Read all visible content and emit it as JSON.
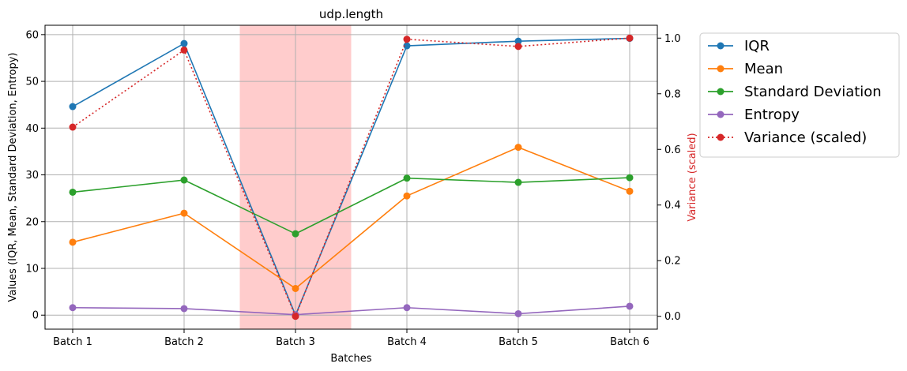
{
  "chart_data": {
    "type": "line",
    "title": "udp.length",
    "xlabel": "Batches",
    "ylabel": "Values (IQR, Mean, Standard Deviation, Entropy)",
    "y2label": "Variance (scaled)",
    "categories": [
      "Batch 1",
      "Batch 2",
      "Batch 3",
      "Batch 4",
      "Batch 5",
      "Batch 6"
    ],
    "ylim": [
      -3,
      62
    ],
    "y_ticks": [
      0,
      10,
      20,
      30,
      40,
      50,
      60
    ],
    "y2lim": [
      -0.0462,
      1.0462
    ],
    "y2_ticks": [
      0.0,
      0.2,
      0.4,
      0.6,
      0.8,
      1.0
    ],
    "y2_tick_labels": [
      "0.0",
      "0.2",
      "0.4",
      "0.6",
      "0.8",
      "1.0"
    ],
    "grid": true,
    "legend_position": "outside-right",
    "highlight": {
      "category": "Batch 3",
      "color": "#ffcccc"
    },
    "series": [
      {
        "name": "IQR",
        "color": "#1f77b4",
        "axis": "left",
        "style": "solid",
        "values": [
          44.6,
          58.1,
          0.0,
          57.6,
          58.6,
          59.2
        ]
      },
      {
        "name": "Mean",
        "color": "#ff7f0e",
        "axis": "left",
        "style": "solid",
        "values": [
          15.6,
          21.8,
          5.7,
          25.5,
          35.9,
          26.5
        ]
      },
      {
        "name": "Standard Deviation",
        "color": "#2ca02c",
        "axis": "left",
        "style": "solid",
        "values": [
          26.3,
          28.9,
          17.4,
          29.3,
          28.4,
          29.4
        ]
      },
      {
        "name": "Entropy",
        "color": "#9467bd",
        "axis": "left",
        "style": "solid",
        "values": [
          1.6,
          1.4,
          0.1,
          1.6,
          0.3,
          1.9
        ]
      },
      {
        "name": "Variance (scaled)",
        "color": "#d62728",
        "axis": "right",
        "style": "dotted",
        "values": [
          0.68,
          0.957,
          0.0,
          0.996,
          0.97,
          1.0
        ]
      }
    ]
  }
}
